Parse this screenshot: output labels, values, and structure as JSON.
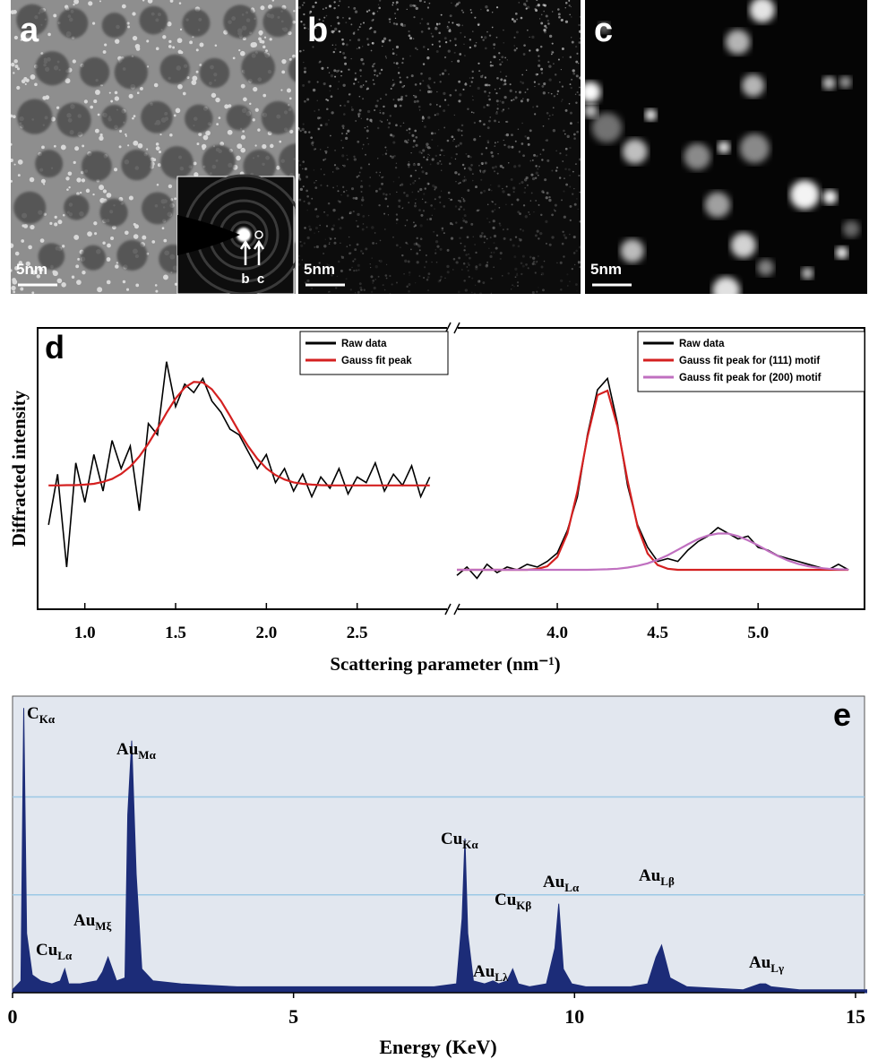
{
  "images": [
    {
      "label": "a",
      "scale_bar": "5nm",
      "inset_labels": [
        "b",
        "c"
      ]
    },
    {
      "label": "b",
      "scale_bar": "5nm"
    },
    {
      "label": "c",
      "scale_bar": "5nm"
    }
  ],
  "chart_data": [
    {
      "type": "line",
      "panel_label": "d",
      "y_label": "Diffracted intensity",
      "x_label": "Scattering parameter (nm⁻¹)",
      "ylim": [
        0,
        100
      ],
      "panels": [
        {
          "xlim": [
            0.74,
            3.0
          ],
          "xticks": [
            {
              "value": 1,
              "label": "1.0"
            },
            {
              "value": 1.5,
              "label": "1.5"
            },
            {
              "value": 2,
              "label": "2.0"
            },
            {
              "value": 2.5,
              "label": "2.5"
            }
          ],
          "x": [
            0.8,
            0.85,
            0.9,
            0.95,
            1.0,
            1.05,
            1.1,
            1.15,
            1.2,
            1.25,
            1.3,
            1.35,
            1.4,
            1.45,
            1.5,
            1.55,
            1.6,
            1.65,
            1.7,
            1.75,
            1.8,
            1.85,
            1.9,
            1.95,
            2.0,
            2.05,
            2.1,
            2.15,
            2.2,
            2.25,
            2.3,
            2.35,
            2.4,
            2.45,
            2.5,
            2.55,
            2.6,
            2.65,
            2.7,
            2.75,
            2.8,
            2.85,
            2.9
          ],
          "series": [
            {
              "name": "Raw data",
              "color": "#000000",
              "values": [
                30,
                48,
                15,
                52,
                38,
                55,
                42,
                60,
                50,
                58,
                35,
                66,
                62,
                88,
                72,
                80,
                77,
                82,
                74,
                70,
                64,
                62,
                56,
                50,
                55,
                45,
                50,
                42,
                48,
                40,
                47,
                43,
                50,
                41,
                47,
                45,
                52,
                42,
                48,
                44,
                51,
                40,
                47
              ]
            },
            {
              "name": "Gauss fit peak",
              "color": "#d42020",
              "values": [
                44.0,
                44.0,
                44.1,
                44.1,
                44.3,
                44.6,
                45.3,
                46.3,
                48.1,
                50.7,
                54.3,
                58.9,
                64.2,
                69.8,
                74.9,
                78.8,
                80.8,
                80.6,
                78.2,
                74.0,
                68.7,
                63.1,
                57.9,
                53.5,
                50.1,
                47.7,
                46.1,
                45.1,
                44.6,
                44.3,
                44.1,
                44.0,
                44.0,
                44.0,
                44.0,
                44.0,
                44.0,
                44.0,
                44.0,
                44.0,
                44.0,
                44.0,
                44.0
              ]
            }
          ]
        },
        {
          "xlim": [
            3.5,
            5.53
          ],
          "xticks": [
            {
              "value": 4,
              "label": "4.0"
            },
            {
              "value": 4.5,
              "label": "4.5"
            },
            {
              "value": 5,
              "label": "5.0"
            }
          ],
          "x": [
            3.5,
            3.55,
            3.6,
            3.65,
            3.7,
            3.75,
            3.8,
            3.85,
            3.9,
            3.95,
            4.0,
            4.05,
            4.1,
            4.15,
            4.2,
            4.25,
            4.3,
            4.35,
            4.4,
            4.45,
            4.5,
            4.55,
            4.6,
            4.65,
            4.7,
            4.75,
            4.8,
            4.85,
            4.9,
            4.95,
            5.0,
            5.05,
            5.1,
            5.15,
            5.2,
            5.25,
            5.3,
            5.35,
            5.4,
            5.45
          ],
          "series": [
            {
              "name": "Raw data",
              "color": "#000000",
              "values": [
                12,
                15,
                11,
                16,
                13,
                15,
                14,
                16,
                15,
                17,
                20,
                28,
                40,
                62,
                78,
                82,
                66,
                44,
                30,
                22,
                17,
                18,
                17,
                21,
                24,
                26,
                29,
                27,
                25,
                26,
                22,
                21,
                19,
                18,
                17,
                16,
                15,
                14,
                16,
                14
              ]
            },
            {
              "name": "Gauss fit peak for (111) motif",
              "color": "#d42020",
              "values": [
                14.0,
                14.0,
                14.0,
                14.0,
                14.0,
                14.0,
                14.0,
                14.0,
                14.3,
                15.3,
                18.6,
                26.9,
                41.9,
                61.2,
                76.1,
                77.7,
                64.9,
                45.7,
                29.3,
                19.8,
                15.7,
                14.4,
                14.0,
                14.0,
                14.0,
                14.0,
                14.0,
                14.0,
                14.0,
                14.0,
                14.0,
                14.0,
                14.0,
                14.0,
                14.0,
                14.0,
                14.0,
                14.0,
                14.0,
                14.0
              ]
            },
            {
              "name": "Gauss fit peak for (200) motif",
              "color": "#c070c0",
              "values": [
                14.0,
                14.0,
                14.0,
                14.0,
                14.0,
                14.0,
                14.0,
                14.0,
                14.0,
                14.0,
                14.0,
                14.0,
                14.0,
                14.0,
                14.1,
                14.2,
                14.4,
                14.8,
                15.4,
                16.3,
                17.6,
                19.2,
                21.1,
                23.1,
                24.9,
                26.2,
                26.9,
                26.9,
                26.0,
                24.5,
                22.7,
                20.7,
                18.9,
                17.3,
                16.1,
                15.3,
                14.7,
                14.4,
                14.2,
                14.1
              ]
            }
          ]
        }
      ]
    },
    {
      "type": "area",
      "panel_label": "e",
      "x_label": "Energy (KeV)",
      "xlim": [
        0,
        15.16
      ],
      "xticks": [
        0,
        5,
        10,
        15
      ],
      "ylim": [
        0,
        100
      ],
      "ygrid": [
        33,
        66
      ],
      "color": "#1c2c78",
      "background": "#e2e7ef",
      "x": [
        0,
        0.15,
        0.2,
        0.25,
        0.35,
        0.5,
        0.7,
        0.85,
        0.93,
        1.0,
        1.2,
        1.5,
        1.6,
        1.7,
        1.85,
        2.0,
        2.05,
        2.12,
        2.2,
        2.3,
        2.5,
        3,
        4,
        5,
        6,
        7,
        7.5,
        7.9,
        8.0,
        8.05,
        8.1,
        8.2,
        8.4,
        8.55,
        8.65,
        8.8,
        8.9,
        9.0,
        9.2,
        9.5,
        9.65,
        9.72,
        9.8,
        9.95,
        10.2,
        11,
        11.3,
        11.45,
        11.55,
        11.7,
        12,
        13,
        13.3,
        13.4,
        13.5,
        14,
        15,
        15.2
      ],
      "values": [
        1,
        4,
        96,
        20,
        6,
        4,
        3,
        4,
        8,
        3,
        3,
        4,
        7,
        12,
        4,
        5,
        60,
        85,
        40,
        8,
        4,
        3,
        2,
        2,
        2,
        2,
        2,
        3,
        25,
        52,
        20,
        4,
        3,
        4,
        3,
        4,
        8,
        3,
        2,
        3,
        15,
        30,
        8,
        3,
        2,
        2,
        3,
        12,
        16,
        5,
        2,
        1,
        3,
        3,
        2,
        1,
        1,
        1
      ],
      "annotations": [
        {
          "main": "C",
          "sub": "Kα"
        },
        {
          "main": "Au",
          "sub": "Mα"
        },
        {
          "main": "Cu",
          "sub": "Lα"
        },
        {
          "main": "Au",
          "sub": "Mξ"
        },
        {
          "main": "Cu",
          "sub": "Kα"
        },
        {
          "main": "Au",
          "sub": "Lλ"
        },
        {
          "main": "Cu",
          "sub": "Kβ"
        },
        {
          "main": "Au",
          "sub": "Lα"
        },
        {
          "main": "Au",
          "sub": "Lβ"
        },
        {
          "main": "Au",
          "sub": "Lγ"
        }
      ]
    }
  ]
}
